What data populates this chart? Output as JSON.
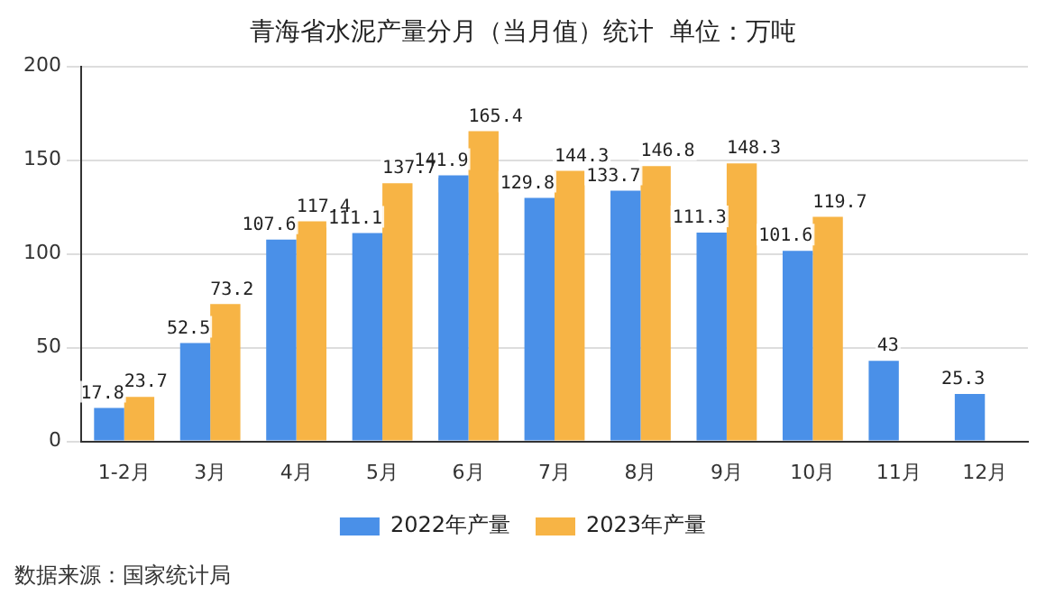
{
  "chart_data": {
    "type": "bar",
    "title": "青海省水泥产量分月（当月值）统计  单位：万吨",
    "categories": [
      "1-2月",
      "3月",
      "4月",
      "5月",
      "6月",
      "7月",
      "8月",
      "9月",
      "10月",
      "11月",
      "12月"
    ],
    "series": [
      {
        "name": "2022年产量",
        "color": "#4a90e8",
        "values": [
          17.8,
          52.5,
          107.6,
          111.1,
          141.9,
          129.8,
          133.7,
          111.3,
          101.6,
          43,
          25.3
        ]
      },
      {
        "name": "2023年产量",
        "color": "#f7b445",
        "values": [
          23.7,
          73.2,
          117.4,
          137.7,
          165.4,
          144.3,
          146.8,
          148.3,
          119.7,
          null,
          null
        ]
      }
    ],
    "ylim": [
      0,
      200
    ],
    "yticks": [
      0,
      50,
      100,
      150,
      200
    ],
    "grid": "y",
    "legend": "bottom",
    "data_labels": true,
    "annotations": [
      "数据来源：国家统计局"
    ]
  }
}
